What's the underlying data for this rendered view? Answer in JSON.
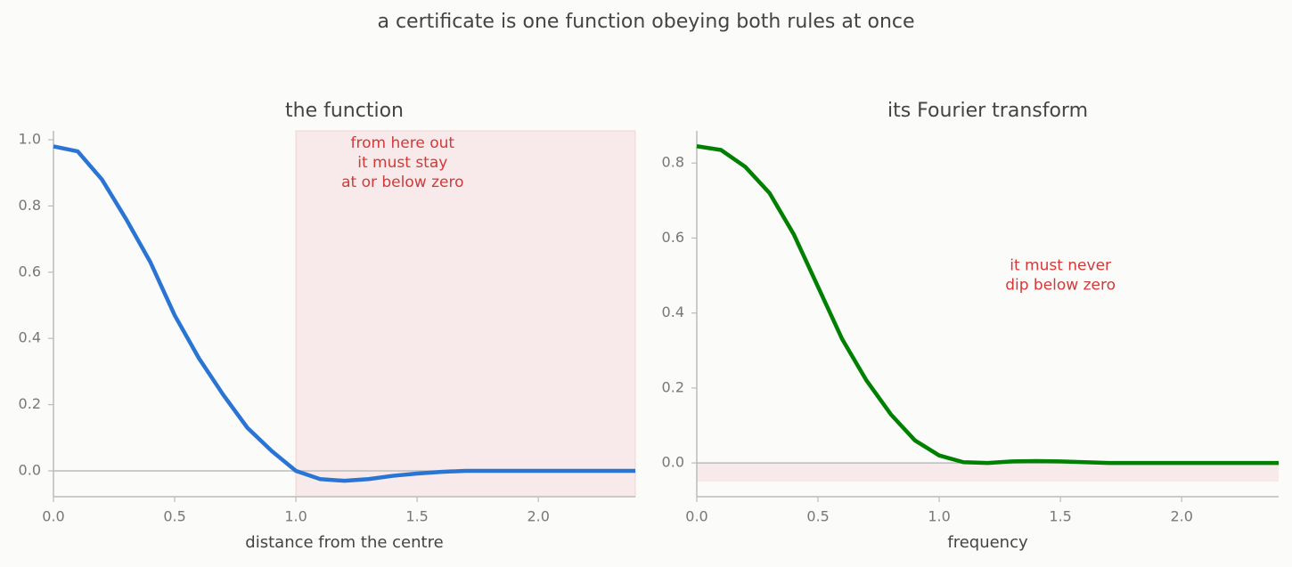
{
  "title": "a certificate is one function obeying both rules at once",
  "chart_data": [
    {
      "type": "line",
      "title": "the function",
      "xlabel": "distance from the centre",
      "x": [
        0,
        0.1,
        0.2,
        0.3,
        0.4,
        0.5,
        0.6,
        0.7,
        0.8,
        0.9,
        1.0,
        1.1,
        1.2,
        1.3,
        1.4,
        1.5,
        1.6,
        1.7,
        1.8,
        1.9,
        2.0,
        2.1,
        2.2,
        2.3,
        2.4
      ],
      "values": [
        0.98,
        0.965,
        0.88,
        0.76,
        0.63,
        0.47,
        0.34,
        0.23,
        0.13,
        0.06,
        0.0,
        -0.025,
        -0.03,
        -0.025,
        -0.015,
        -0.008,
        -0.003,
        0,
        0,
        0,
        0,
        0,
        0,
        0,
        0
      ],
      "color": "#2a75d3",
      "xlim": [
        0,
        2.4
      ],
      "ylim": [
        -0.078,
        1.027
      ],
      "xticks": [
        {
          "value": 0,
          "label": "0.0"
        },
        0.5,
        {
          "value": 1,
          "label": "1.0"
        },
        1.5,
        {
          "value": 2,
          "label": "2.0"
        }
      ],
      "yticks": [
        {
          "value": 0,
          "label": "0.0"
        },
        0.2,
        0.4,
        0.6,
        0.8,
        {
          "value": 1,
          "label": "1.0"
        }
      ],
      "hline": 0,
      "shaded_x": [
        1.0,
        2.4
      ],
      "annotation": {
        "lines": [
          "from here out",
          "it must stay",
          "at or below zero"
        ],
        "x": 1.44,
        "y": 0.93
      }
    },
    {
      "type": "line",
      "title": "its Fourier transform",
      "xlabel": "frequency",
      "x": [
        0,
        0.1,
        0.2,
        0.3,
        0.4,
        0.5,
        0.6,
        0.7,
        0.8,
        0.9,
        1.0,
        1.1,
        1.2,
        1.3,
        1.4,
        1.5,
        1.6,
        1.7,
        1.8,
        1.9,
        2.0,
        2.1,
        2.2,
        2.3,
        2.4
      ],
      "values": [
        0.845,
        0.835,
        0.79,
        0.72,
        0.61,
        0.47,
        0.33,
        0.22,
        0.13,
        0.06,
        0.02,
        0.002,
        0.0,
        0.004,
        0.005,
        0.004,
        0.002,
        0,
        0,
        0,
        0,
        0,
        0,
        0,
        0
      ],
      "color": "#008000",
      "xlim": [
        0,
        2.4
      ],
      "ylim": [
        -0.09,
        0.886
      ],
      "xticks": [
        {
          "value": 0,
          "label": "0.0"
        },
        0.5,
        {
          "value": 1,
          "label": "1.0"
        },
        1.5,
        {
          "value": 2,
          "label": "2.0"
        }
      ],
      "yticks": [
        {
          "value": 0,
          "label": "0.0"
        },
        0.2,
        0.4,
        0.6,
        0.8
      ],
      "hline": 0,
      "shaded_y": [
        -0.05,
        0
      ],
      "annotation": {
        "lines": [
          "it must never",
          "dip below zero"
        ],
        "x": 1.5,
        "y": 0.5
      }
    }
  ]
}
